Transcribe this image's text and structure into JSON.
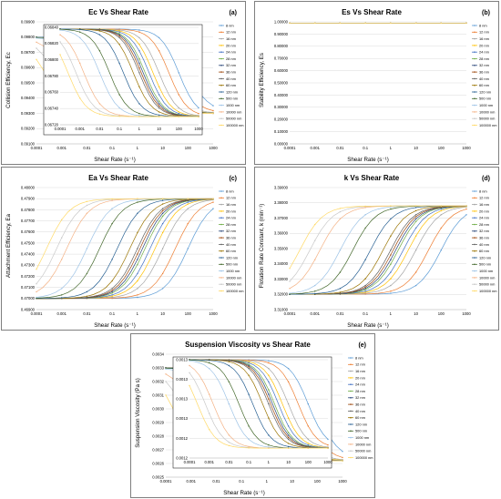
{
  "legend_labels": [
    "8 nm",
    "12 nm",
    "16 nm",
    "20 nm",
    "24 nm",
    "28 nm",
    "32 nm",
    "36 nm",
    "40 nm",
    "60 nm",
    "120 nm",
    "500 nm",
    "1000 nm",
    "10000 nm",
    "50000 nm",
    "100000 nm"
  ],
  "series_colors": [
    "#5b9bd5",
    "#ed7d31",
    "#a5a5a5",
    "#ffc000",
    "#4472c4",
    "#70ad47",
    "#264478",
    "#9e480e",
    "#636363",
    "#997300",
    "#255e91",
    "#43682b",
    "#9dc3e6",
    "#f4b183",
    "#c9c9c9",
    "#ffd966"
  ],
  "x_ticks": [
    "0.0001",
    "0.001",
    "0.01",
    "0.1",
    "1",
    "10",
    "100",
    "1000"
  ],
  "x_values": [
    0.0001,
    0.001,
    0.01,
    0.1,
    1,
    10,
    100,
    1000
  ],
  "chart_data": [
    {
      "type": "line",
      "id": "a",
      "title": "Ec Vs Shear Rate",
      "panel_label": "(a)",
      "xlabel": "Shear Rate (s⁻¹)",
      "ylabel": "Collision Efficiency, Ec",
      "xscale": "log",
      "ylim": [
        0.091,
        0.099
      ],
      "yticks": [
        "0.09100",
        "0.09200",
        "0.09300",
        "0.09400",
        "0.09500",
        "0.09600",
        "0.09700",
        "0.09800",
        "0.09900"
      ],
      "midpoints_log10": [
        2.0,
        1.5,
        1.0,
        0.7,
        0.5,
        0.3,
        0.2,
        0.1,
        0.0,
        -0.3,
        -0.8,
        -1.5,
        -2.0,
        -2.8,
        -3.2,
        -3.6
      ],
      "y_from": 0.098,
      "y_to": 0.093,
      "inset": {
        "ylim": [
          0.0672,
          0.0684
        ],
        "yticks": [
          "0.06720",
          "0.06740",
          "0.06760",
          "0.06780",
          "0.06800",
          "0.06820",
          "0.06840"
        ],
        "xticks": [
          "0.0001",
          "0.001",
          "0.01",
          "0.1",
          "1",
          "10",
          "100",
          "1000"
        ],
        "y_from": 0.06838,
        "y_to": 0.0673
      }
    },
    {
      "type": "line",
      "id": "b",
      "title": "Es Vs Shear Rate",
      "panel_label": "(b)",
      "xlabel": "Shear Rate (s⁻¹)",
      "ylabel": "Stability Efficiency, Es",
      "xscale": "log",
      "ylim": [
        0,
        1.0
      ],
      "yticks": [
        "0.00000",
        "0.10000",
        "0.20000",
        "0.30000",
        "0.40000",
        "0.50000",
        "0.60000",
        "0.70000",
        "0.80000",
        "0.90000",
        "1.00000"
      ],
      "constant_value": 0.99
    },
    {
      "type": "line",
      "id": "c",
      "title": "Ea Vs Shear Rate",
      "panel_label": "(c)",
      "xlabel": "Shear Rate (s⁻¹)",
      "ylabel": "Attachment Efficiency, Ea",
      "xscale": "log",
      "ylim": [
        0.469,
        0.48
      ],
      "yticks": [
        "0.46900",
        "0.47000",
        "0.47100",
        "0.47200",
        "0.47300",
        "0.47400",
        "0.47500",
        "0.47600",
        "0.47700",
        "0.47800",
        "0.47900",
        "0.48000"
      ],
      "midpoints_log10": [
        2.0,
        1.5,
        1.0,
        0.7,
        0.5,
        0.3,
        0.2,
        0.1,
        0.0,
        -0.3,
        -0.8,
        -1.5,
        -2.0,
        -2.8,
        -3.2,
        -3.6
      ],
      "y_from": 0.47,
      "y_to": 0.479
    },
    {
      "type": "line",
      "id": "d",
      "title": "k Vs Shear Rate",
      "panel_label": "(d)",
      "xlabel": "Shear Rate (s⁻¹)",
      "ylabel": "Flotation Rate Constant, k (min⁻¹)",
      "xscale": "log",
      "ylim": [
        3.31,
        3.39
      ],
      "yticks": [
        "3.31000",
        "3.32000",
        "3.33000",
        "3.34000",
        "3.35000",
        "3.36000",
        "3.37000",
        "3.38000",
        "3.39000"
      ],
      "midpoints_log10": [
        2.0,
        1.5,
        1.0,
        0.7,
        0.5,
        0.3,
        0.2,
        0.1,
        0.0,
        -0.3,
        -0.8,
        -1.5,
        -2.0,
        -2.8,
        -3.2,
        -3.6
      ],
      "y_from": 3.32,
      "y_to": 3.378
    },
    {
      "type": "line",
      "id": "e",
      "title": "Suspension Viscosity vs Shear Rate",
      "panel_label": "(e)",
      "xlabel": "Shear Rate (s⁻¹)",
      "ylabel": "Suspension Viscosity (Pa s)",
      "xscale": "log",
      "ylim": [
        0.0025,
        0.0034
      ],
      "yticks": [
        "0.0025",
        "0.0026",
        "0.0027",
        "0.0028",
        "0.0029",
        "0.0030",
        "0.0031",
        "0.0032",
        "0.0033",
        "0.0034"
      ],
      "midpoints_log10": [
        2.0,
        1.5,
        1.0,
        0.7,
        0.5,
        0.3,
        0.2,
        0.1,
        0.0,
        -0.3,
        -0.8,
        -1.5,
        -2.0,
        -2.8,
        -3.2,
        -3.6
      ],
      "y_from": 0.0033,
      "y_to": 0.00262,
      "inset": {
        "ylim": [
          0.0012,
          0.0013
        ],
        "yticks": [
          "0.0012",
          "0.0012",
          "0.0013",
          "0.0013",
          "0.0013",
          "0.0013"
        ],
        "xticks": [
          "0.0001",
          "0.001",
          "0.01",
          "0.1",
          "1",
          "10",
          "100",
          "1000"
        ],
        "y_from": 0.0013,
        "y_to": 0.00121
      }
    }
  ]
}
